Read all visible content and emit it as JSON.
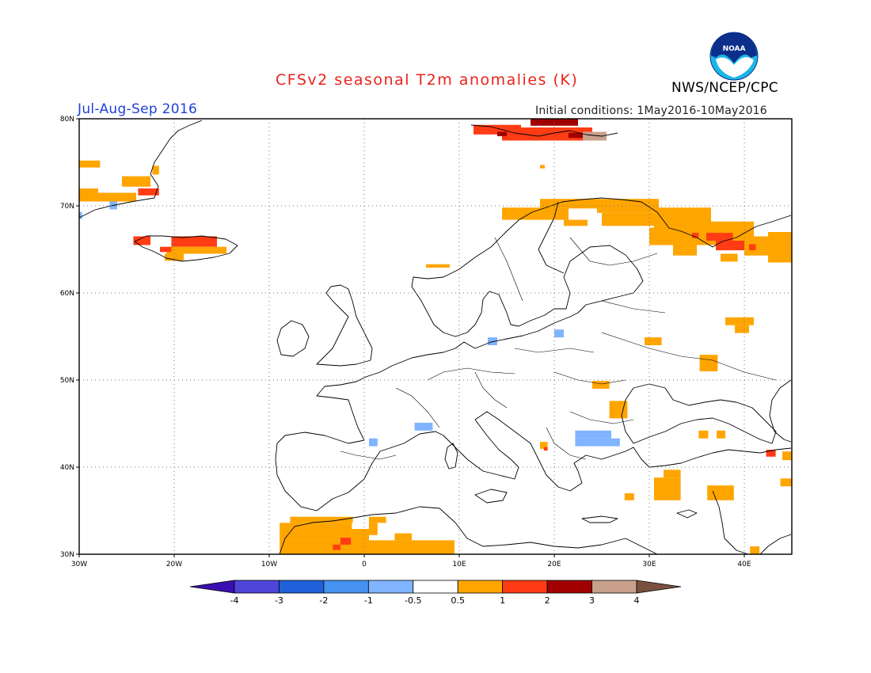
{
  "header": {
    "title": "CFSv2 seasonal T2m anomalies (K)",
    "period": "Jul-Aug-Sep 2016",
    "agency": "NWS/NCEP/CPC",
    "initial_conditions": "Initial conditions: 1May2016-10May2016",
    "logo_text": "NOAA"
  },
  "map": {
    "lon_range": [
      -30,
      45
    ],
    "lat_range": [
      30,
      80
    ],
    "lon_ticks": [
      {
        "value": -30,
        "label": "30W"
      },
      {
        "value": -20,
        "label": "20W"
      },
      {
        "value": -10,
        "label": "10W"
      },
      {
        "value": 0,
        "label": "0"
      },
      {
        "value": 10,
        "label": "10E"
      },
      {
        "value": 20,
        "label": "20E"
      },
      {
        "value": 30,
        "label": "30E"
      },
      {
        "value": 40,
        "label": "40E"
      }
    ],
    "lat_ticks": [
      {
        "value": 30,
        "label": "30N"
      },
      {
        "value": 40,
        "label": "40N"
      },
      {
        "value": 50,
        "label": "50N"
      },
      {
        "value": 60,
        "label": "60N"
      },
      {
        "value": 70,
        "label": "70N"
      },
      {
        "value": 80,
        "label": "80N"
      }
    ],
    "grid": "dotted",
    "anomaly_cells": [
      {
        "lon": [
          -30,
          -27.8
        ],
        "lat": [
          74.4,
          75.2
        ],
        "c": "#ffa500"
      },
      {
        "lon": [
          -30,
          -28
        ],
        "lat": [
          70.5,
          72
        ],
        "c": "#ffa500"
      },
      {
        "lon": [
          -28,
          -24
        ],
        "lat": [
          70.5,
          71.5
        ],
        "c": "#ffa500"
      },
      {
        "lon": [
          -26.8,
          -26.0
        ],
        "lat": [
          69.6,
          70.5
        ],
        "c": "#80b4ff"
      },
      {
        "lon": [
          -30,
          -29.7
        ],
        "lat": [
          68.5,
          69.3
        ],
        "c": "#80b4ff"
      },
      {
        "lon": [
          -25.5,
          -22.5
        ],
        "lat": [
          72.2,
          73.4
        ],
        "c": "#ffa500"
      },
      {
        "lon": [
          -22.3,
          -21.6
        ],
        "lat": [
          73.6,
          74.6
        ],
        "c": "#ffa500"
      },
      {
        "lon": [
          -23.8,
          -21.6
        ],
        "lat": [
          71.2,
          72.0
        ],
        "c": "#ff3c14"
      },
      {
        "lon": [
          -24.3,
          -22.5
        ],
        "lat": [
          65.5,
          66.5
        ],
        "c": "#ff3c14"
      },
      {
        "lon": [
          -20.3,
          -15.5
        ],
        "lat": [
          65.3,
          66.5
        ],
        "c": "#ff3c14"
      },
      {
        "lon": [
          -20.8,
          -14.5
        ],
        "lat": [
          64.5,
          65.3
        ],
        "c": "#ffa500"
      },
      {
        "lon": [
          -21.0,
          -19.0
        ],
        "lat": [
          63.7,
          64.5
        ],
        "c": "#ffa500"
      },
      {
        "lon": [
          -21.5,
          -20.3
        ],
        "lat": [
          64.7,
          65.3
        ],
        "c": "#ff3c14"
      },
      {
        "lon": [
          11.5,
          16.5
        ],
        "lat": [
          78.2,
          79.3
        ],
        "c": "#ff3c14"
      },
      {
        "lon": [
          14.5,
          24.0
        ],
        "lat": [
          77.5,
          79.0
        ],
        "c": "#ff3c14"
      },
      {
        "lon": [
          17.5,
          22.5
        ],
        "lat": [
          79.2,
          80.0
        ],
        "c": "#a00000"
      },
      {
        "lon": [
          21.5,
          25.0
        ],
        "lat": [
          77.8,
          78.4
        ],
        "c": "#a00000"
      },
      {
        "lon": [
          23.0,
          25.5
        ],
        "lat": [
          77.5,
          78.5
        ],
        "c": "#c8a08c"
      },
      {
        "lon": [
          14.0,
          15.0
        ],
        "lat": [
          78.0,
          78.5
        ],
        "c": "#a00000"
      },
      {
        "lon": [
          18.5,
          19.0
        ],
        "lat": [
          74.3,
          74.7
        ],
        "c": "#ffa500"
      },
      {
        "lon": [
          6.5,
          9.0
        ],
        "lat": [
          62.9,
          63.3
        ],
        "c": "#ffa500"
      },
      {
        "lon": [
          14.5,
          21.5
        ],
        "lat": [
          68.4,
          69.8
        ],
        "c": "#ffa500"
      },
      {
        "lon": [
          18.5,
          24.5
        ],
        "lat": [
          69.7,
          70.8
        ],
        "c": "#ffa500"
      },
      {
        "lon": [
          24.5,
          31.0
        ],
        "lat": [
          69.2,
          70.8
        ],
        "c": "#ffa500"
      },
      {
        "lon": [
          21.0,
          23.5
        ],
        "lat": [
          67.7,
          68.4
        ],
        "c": "#ffa500"
      },
      {
        "lon": [
          25.0,
          31.0
        ],
        "lat": [
          67.7,
          69.2
        ],
        "c": "#ffa500"
      },
      {
        "lon": [
          30.5,
          36.5
        ],
        "lat": [
          67.5,
          69.8
        ],
        "c": "#ffa500"
      },
      {
        "lon": [
          30.0,
          38.0
        ],
        "lat": [
          65.5,
          67.5
        ],
        "c": "#ffa500"
      },
      {
        "lon": [
          32.5,
          35.0
        ],
        "lat": [
          64.3,
          65.5
        ],
        "c": "#ffa500"
      },
      {
        "lon": [
          36.5,
          41.0
        ],
        "lat": [
          65.7,
          68.2
        ],
        "c": "#ffa500"
      },
      {
        "lon": [
          34.5,
          35.2
        ],
        "lat": [
          66.3,
          66.9
        ],
        "c": "#ff3c14"
      },
      {
        "lon": [
          36.0,
          38.8
        ],
        "lat": [
          66.0,
          66.9
        ],
        "c": "#ff3c14"
      },
      {
        "lon": [
          37.0,
          40.0
        ],
        "lat": [
          64.9,
          66.0
        ],
        "c": "#ff3c14"
      },
      {
        "lon": [
          40.0,
          42.5
        ],
        "lat": [
          64.3,
          66.5
        ],
        "c": "#ffa500"
      },
      {
        "lon": [
          42.5,
          45.0
        ],
        "lat": [
          63.5,
          67.0
        ],
        "c": "#ffa500"
      },
      {
        "lon": [
          40.5,
          41.2
        ],
        "lat": [
          64.9,
          65.6
        ],
        "c": "#ff3c14"
      },
      {
        "lon": [
          37.5,
          39.3
        ],
        "lat": [
          63.6,
          64.5
        ],
        "c": "#ffa500"
      },
      {
        "lon": [
          38.0,
          41.0
        ],
        "lat": [
          56.3,
          57.2
        ],
        "c": "#ffa500"
      },
      {
        "lon": [
          39.0,
          40.5
        ],
        "lat": [
          55.4,
          56.3
        ],
        "c": "#ffa500"
      },
      {
        "lon": [
          29.5,
          31.3
        ],
        "lat": [
          54.0,
          54.9
        ],
        "c": "#ffa500"
      },
      {
        "lon": [
          35.3,
          37.2
        ],
        "lat": [
          51.0,
          52.9
        ],
        "c": "#ffa500"
      },
      {
        "lon": [
          24.0,
          25.8
        ],
        "lat": [
          49.0,
          49.9
        ],
        "c": "#ffa500"
      },
      {
        "lon": [
          25.8,
          27.7
        ],
        "lat": [
          45.6,
          47.6
        ],
        "c": "#ffa500"
      },
      {
        "lon": [
          35.2,
          36.2
        ],
        "lat": [
          43.3,
          44.2
        ],
        "c": "#ffa500"
      },
      {
        "lon": [
          37.1,
          38.0
        ],
        "lat": [
          43.3,
          44.2
        ],
        "c": "#ffa500"
      },
      {
        "lon": [
          42.3,
          43.3
        ],
        "lat": [
          41.2,
          42.0
        ],
        "c": "#ff3c14"
      },
      {
        "lon": [
          44.0,
          45.0
        ],
        "lat": [
          40.8,
          41.8
        ],
        "c": "#ffa500"
      },
      {
        "lon": [
          43.8,
          45.0
        ],
        "lat": [
          37.8,
          38.7
        ],
        "c": "#ffa500"
      },
      {
        "lon": [
          30.5,
          33.3
        ],
        "lat": [
          36.2,
          38.8
        ],
        "c": "#ffa500"
      },
      {
        "lon": [
          31.5,
          33.3
        ],
        "lat": [
          38.8,
          39.7
        ],
        "c": "#ffa500"
      },
      {
        "lon": [
          36.1,
          38.9
        ],
        "lat": [
          36.2,
          37.9
        ],
        "c": "#ffa500"
      },
      {
        "lon": [
          27.4,
          28.4
        ],
        "lat": [
          36.2,
          37.0
        ],
        "c": "#ffa500"
      },
      {
        "lon": [
          18.5,
          19.3
        ],
        "lat": [
          42.1,
          42.9
        ],
        "c": "#ffa500"
      },
      {
        "lon": [
          18.9,
          19.3
        ],
        "lat": [
          41.9,
          42.3
        ],
        "c": "#ff3c14"
      },
      {
        "lon": [
          13.0,
          14.0
        ],
        "lat": [
          54.0,
          54.9
        ],
        "c": "#80b4ff"
      },
      {
        "lon": [
          20.0,
          21.0
        ],
        "lat": [
          54.9,
          55.8
        ],
        "c": "#80b4ff"
      },
      {
        "lon": [
          5.3,
          7.2
        ],
        "lat": [
          44.2,
          45.1
        ],
        "c": "#80b4ff"
      },
      {
        "lon": [
          0.5,
          1.4
        ],
        "lat": [
          42.4,
          43.3
        ],
        "c": "#80b4ff"
      },
      {
        "lon": [
          22.2,
          26.0
        ],
        "lat": [
          43.3,
          44.2
        ],
        "c": "#80b4ff"
      },
      {
        "lon": [
          22.2,
          26.9
        ],
        "lat": [
          42.4,
          43.3
        ],
        "c": "#80b4ff"
      },
      {
        "lon": [
          -8.9,
          9.5
        ],
        "lat": [
          30.0,
          31.6
        ],
        "c": "#ffa500"
      },
      {
        "lon": [
          -8.9,
          -1.3
        ],
        "lat": [
          31.6,
          33.6
        ],
        "c": "#ffa500"
      },
      {
        "lon": [
          -7.8,
          -1.2
        ],
        "lat": [
          33.6,
          34.3
        ],
        "c": "#ffa500"
      },
      {
        "lon": [
          -1.3,
          0.5
        ],
        "lat": [
          31.2,
          32.9
        ],
        "c": "#ffa500"
      },
      {
        "lon": [
          0.5,
          2.3
        ],
        "lat": [
          33.6,
          34.3
        ],
        "c": "#ffa500"
      },
      {
        "lon": [
          0.5,
          1.4
        ],
        "lat": [
          32.2,
          33.6
        ],
        "c": "#ffa500"
      },
      {
        "lon": [
          1.4,
          3.2
        ],
        "lat": [
          30.0,
          30.8
        ],
        "c": "#ffa500"
      },
      {
        "lon": [
          3.2,
          5.0
        ],
        "lat": [
          31.6,
          32.4
        ],
        "c": "#ffa500"
      },
      {
        "lon": [
          -2.5,
          -1.4
        ],
        "lat": [
          31.1,
          31.9
        ],
        "c": "#ff3c14"
      },
      {
        "lon": [
          -3.3,
          -2.5
        ],
        "lat": [
          30.5,
          31.1
        ],
        "c": "#ff3c14"
      },
      {
        "lon": [
          40.6,
          41.6
        ],
        "lat": [
          30.0,
          30.9
        ],
        "c": "#ffa500"
      }
    ]
  },
  "colorbar": {
    "colors": [
      "#3a0fb0",
      "#4f44d8",
      "#2060d8",
      "#4592f0",
      "#80b4ff",
      "#ffffff",
      "#ffa500",
      "#ff3c14",
      "#a00000",
      "#c8a08c",
      "#7a5040"
    ],
    "labels": [
      "-4",
      "-3",
      "-2",
      "-1",
      "-0.5",
      "0.5",
      "1",
      "2",
      "3",
      "4"
    ]
  }
}
